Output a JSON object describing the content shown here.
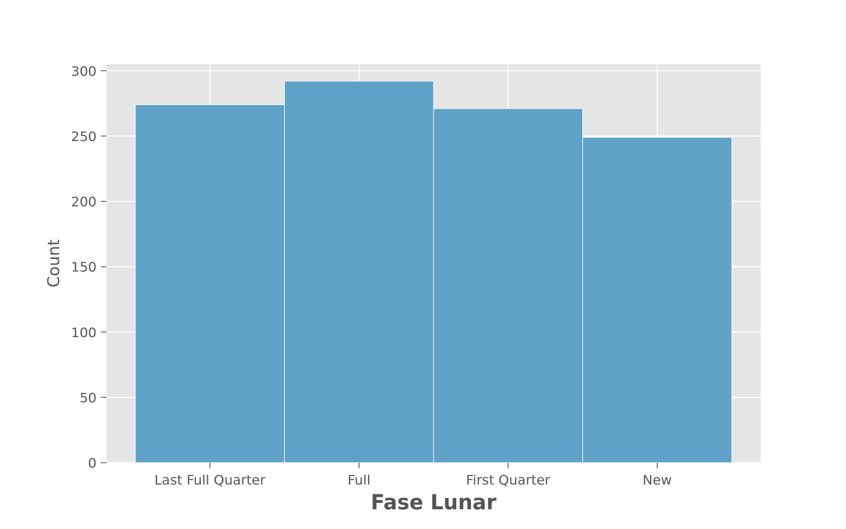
{
  "chart_data": {
    "type": "bar",
    "title": "",
    "xlabel": "Fase Lunar",
    "ylabel": "Count",
    "categories": [
      "Last Full Quarter",
      "Full",
      "First Quarter",
      "New"
    ],
    "values": [
      274,
      292,
      271,
      249
    ],
    "ylim": [
      0,
      305
    ],
    "yticks": [
      0,
      50,
      100,
      150,
      200,
      250,
      300
    ],
    "grid": true,
    "legend": "none"
  },
  "colors": {
    "bar": "#5fa1c7",
    "plot_background": "#e5e5e5",
    "grid": "#ffffff",
    "text": "#555555"
  }
}
